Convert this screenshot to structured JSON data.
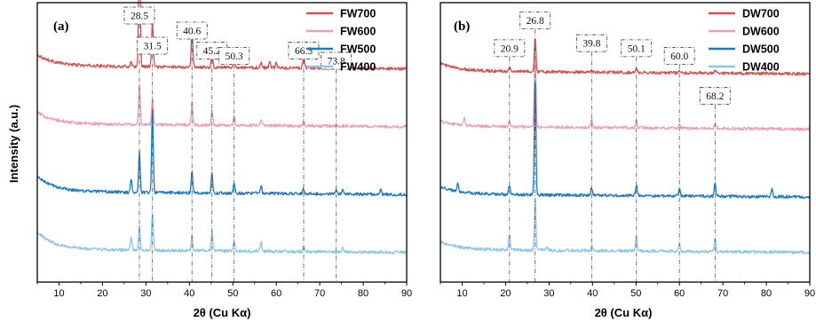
{
  "colors": {
    "700": "#d6504f",
    "600": "#ef9db5",
    "500": "#1b78c4",
    "400": "#8dc5ea",
    "axis": "#000000",
    "guide": "#555555"
  },
  "chart_data": [
    {
      "type": "line",
      "panel_label": "(a)",
      "xlabel": "2θ (Cu Kα)",
      "ylabel": "Intensity (a.u.)",
      "xlim": [
        5,
        90
      ],
      "xticks": [
        10,
        20,
        30,
        40,
        50,
        60,
        70,
        80,
        90
      ],
      "y_ticks_shown": false,
      "legend_position": "top-right",
      "series": [
        {
          "name": "FW700",
          "color_key": "700",
          "baseline": 0.86,
          "start_bump": 0.045,
          "peaks": [
            [
              26.6,
              0.02
            ],
            [
              28.5,
              0.58
            ],
            [
              31.5,
              0.18
            ],
            [
              40.6,
              0.16
            ],
            [
              45.2,
              0.06
            ],
            [
              50.3,
              0.05
            ],
            [
              56.5,
              0.02
            ],
            [
              58.5,
              0.03
            ],
            [
              60.0,
              0.02
            ],
            [
              66.3,
              0.05
            ],
            [
              73.8,
              0.04
            ],
            [
              75.3,
              0.02
            ]
          ]
        },
        {
          "name": "FW600",
          "color_key": "600",
          "baseline": 0.63,
          "start_bump": 0.045,
          "peaks": [
            [
              28.5,
              0.16
            ],
            [
              31.5,
              0.1
            ],
            [
              40.6,
              0.09
            ],
            [
              45.2,
              0.06
            ],
            [
              50.3,
              0.04
            ],
            [
              56.5,
              0.02
            ],
            [
              66.3,
              0.02
            ]
          ]
        },
        {
          "name": "FW500",
          "color_key": "500",
          "baseline": 0.36,
          "start_bump": 0.06,
          "peaks": [
            [
              26.6,
              0.05
            ],
            [
              28.5,
              0.16
            ],
            [
              31.5,
              0.33
            ],
            [
              40.6,
              0.09
            ],
            [
              45.2,
              0.08
            ],
            [
              50.3,
              0.04
            ],
            [
              56.5,
              0.03
            ],
            [
              66.3,
              0.02
            ],
            [
              73.8,
              0.02
            ],
            [
              75.3,
              0.02
            ],
            [
              84.0,
              0.02
            ]
          ]
        },
        {
          "name": "FW400",
          "color_key": "400",
          "baseline": 0.13,
          "start_bump": 0.07,
          "peaks": [
            [
              26.6,
              0.05
            ],
            [
              28.5,
              0.1
            ],
            [
              31.5,
              0.15
            ],
            [
              40.6,
              0.06
            ],
            [
              45.2,
              0.08
            ],
            [
              50.3,
              0.04
            ],
            [
              56.5,
              0.04
            ],
            [
              66.3,
              0.02
            ],
            [
              75.3,
              0.02
            ]
          ]
        }
      ],
      "peak_labels": [
        {
          "text": "28.5",
          "x": 28.5,
          "y": 1.06
        },
        {
          "text": "31.5",
          "x": 31.5,
          "y": 0.94
        },
        {
          "text": "40.6",
          "x": 40.6,
          "y": 1.0
        },
        {
          "text": "45.2",
          "x": 45.2,
          "y": 0.92
        },
        {
          "text": "50.3",
          "x": 50.3,
          "y": 0.9
        },
        {
          "text": "66.3",
          "x": 66.3,
          "y": 0.92
        },
        {
          "text": "73.8",
          "x": 73.8,
          "y": 0.88
        }
      ],
      "guide_lines": [
        28.5,
        31.5,
        40.6,
        45.2,
        50.3,
        66.3,
        73.8
      ]
    },
    {
      "type": "line",
      "panel_label": "(b)",
      "xlabel": "2θ (Cu Kα)",
      "ylabel": "",
      "xlim": [
        5,
        90
      ],
      "xticks": [
        10,
        20,
        30,
        40,
        50,
        60,
        70,
        80,
        90
      ],
      "y_ticks_shown": false,
      "legend_position": "top-right",
      "series": [
        {
          "name": "DW700",
          "color_key": "700",
          "baseline": 0.84,
          "start_bump": 0.03,
          "peaks": [
            [
              20.9,
              0.02
            ],
            [
              26.8,
              0.14
            ],
            [
              39.8,
              0.01
            ],
            [
              50.1,
              0.02
            ],
            [
              60.0,
              0.01
            ],
            [
              68.2,
              0.01
            ]
          ]
        },
        {
          "name": "DW600",
          "color_key": "600",
          "baseline": 0.62,
          "start_bump": 0.02,
          "peaks": [
            [
              10.5,
              0.03
            ],
            [
              20.9,
              0.02
            ],
            [
              26.8,
              0.3
            ],
            [
              39.8,
              0.03
            ],
            [
              50.1,
              0.03
            ],
            [
              60.0,
              0.02
            ],
            [
              68.2,
              0.02
            ]
          ]
        },
        {
          "name": "DW500",
          "color_key": "500",
          "baseline": 0.35,
          "start_bump": 0.03,
          "peaks": [
            [
              9.0,
              0.04
            ],
            [
              20.9,
              0.04
            ],
            [
              26.8,
              0.46
            ],
            [
              39.8,
              0.03
            ],
            [
              50.1,
              0.04
            ],
            [
              60.0,
              0.03
            ],
            [
              68.2,
              0.05
            ],
            [
              81.3,
              0.03
            ]
          ]
        },
        {
          "name": "DW400",
          "color_key": "400",
          "baseline": 0.13,
          "start_bump": 0.03,
          "peaks": [
            [
              20.9,
              0.06
            ],
            [
              26.8,
              0.2
            ],
            [
              29.5,
              0.02
            ],
            [
              39.8,
              0.02
            ],
            [
              50.1,
              0.06
            ],
            [
              60.0,
              0.03
            ],
            [
              68.2,
              0.05
            ]
          ]
        }
      ],
      "peak_labels": [
        {
          "text": "20.9",
          "x": 20.9,
          "y": 0.93
        },
        {
          "text": "26.8",
          "x": 26.8,
          "y": 1.04
        },
        {
          "text": "39.8",
          "x": 39.8,
          "y": 0.95
        },
        {
          "text": "50.1",
          "x": 50.1,
          "y": 0.93
        },
        {
          "text": "60.0",
          "x": 60.0,
          "y": 0.9
        },
        {
          "text": "68.2",
          "x": 68.2,
          "y": 0.74
        }
      ],
      "guide_lines": [
        20.9,
        26.8,
        39.8,
        50.1,
        60.0,
        68.2
      ]
    }
  ]
}
